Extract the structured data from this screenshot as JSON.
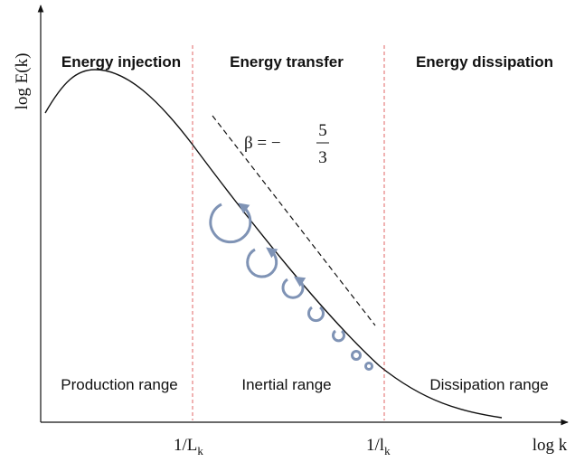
{
  "header": {
    "injection": "Energy injection",
    "transfer": "Energy transfer",
    "dissipation": "Energy dissipation"
  },
  "ranges": {
    "production": "Production range",
    "inertial": "Inertial range",
    "dissipation": "Dissipation range"
  },
  "axes": {
    "y_label": "log E(k)",
    "x_label": "log k"
  },
  "markers": {
    "large_scale": {
      "text": "1/L",
      "subscript": "k"
    },
    "small_scale": {
      "text": "1/l",
      "subscript": "k"
    }
  },
  "slope": {
    "prefix": "β = −",
    "numerator": "5",
    "denominator": "3"
  }
}
